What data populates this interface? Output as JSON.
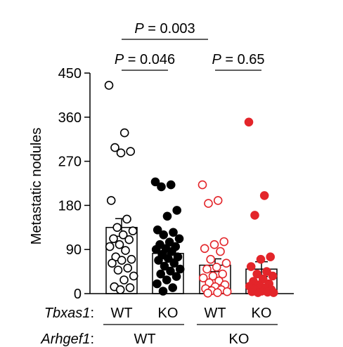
{
  "chart_data": {
    "type": "bar",
    "ylabel": "Metastatic nodules",
    "ylim": [
      0,
      450
    ],
    "yticks": [
      "0",
      "90",
      "180",
      "270",
      "360",
      "450"
    ],
    "grid": false,
    "factor_labels": {
      "row1": "Tbxas1",
      "row2": "Arhgef1",
      "colon": ":"
    },
    "categories": [
      {
        "tbxas1": "WT",
        "arhgef1": "WT"
      },
      {
        "tbxas1": "KO",
        "arhgef1": "WT"
      },
      {
        "tbxas1": "WT",
        "arhgef1": "KO"
      },
      {
        "tbxas1": "KO",
        "arhgef1": "KO"
      }
    ],
    "group_labels": [
      "WT",
      "KO"
    ],
    "series": [
      {
        "mean": 135,
        "sem": 18,
        "color": "#000000",
        "marker": "open-circle",
        "points": [
          425,
          328,
          298,
          290,
          287,
          190,
          152,
          135,
          128,
          120,
          112,
          110,
          100,
          96,
          88,
          75,
          70,
          68,
          62,
          52,
          48,
          36,
          28,
          14,
          12,
          8
        ]
      },
      {
        "mean": 82,
        "sem": 11,
        "color": "#000000",
        "marker": "filled-circle",
        "points": [
          228,
          222,
          218,
          170,
          158,
          130,
          125,
          120,
          112,
          105,
          100,
          96,
          92,
          90,
          86,
          80,
          75,
          72,
          68,
          62,
          56,
          50,
          46,
          40,
          35,
          28,
          20,
          12,
          5
        ]
      },
      {
        "mean": 58,
        "sem": 13,
        "color": "#e3252a",
        "marker": "open-circle",
        "points": [
          222,
          190,
          184,
          106,
          100,
          92,
          86,
          70,
          62,
          54,
          50,
          40,
          36,
          32,
          26,
          22,
          18,
          14,
          10,
          8,
          6,
          4,
          2,
          1
        ]
      },
      {
        "mean": 50,
        "sem": 15,
        "color": "#e3252a",
        "marker": "filled-circle",
        "points": [
          350,
          200,
          160,
          75,
          70,
          55,
          45,
          40,
          36,
          30,
          25,
          20,
          18,
          15,
          12,
          10,
          8,
          5,
          4,
          3,
          2,
          2
        ]
      }
    ],
    "comparisons": [
      {
        "from": 0,
        "to": 3,
        "label": "= 0.003",
        "p": "P"
      },
      {
        "from": 0,
        "to": 1,
        "label": "= 0.046",
        "p": "P"
      },
      {
        "from": 2,
        "to": 3,
        "label": "= 0.65",
        "p": "P"
      }
    ]
  }
}
